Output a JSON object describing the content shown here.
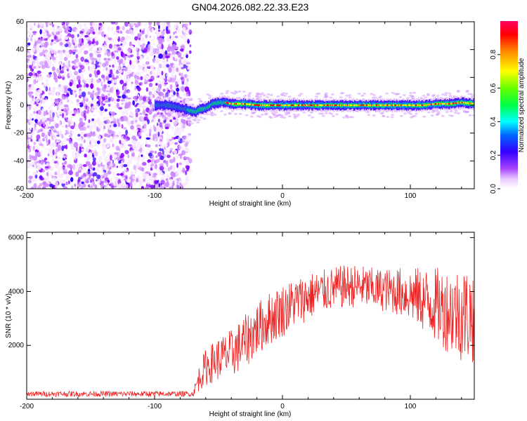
{
  "figure_title": "GN04.2026.082.22.33.E23",
  "colors": {
    "axis": "#000000",
    "snr_line": "#ee2222",
    "colormap": [
      "#f8e8ff",
      "#cc88ff",
      "#8800ff",
      "#3300ff",
      "#0000ff",
      "#0088ff",
      "#00ffff",
      "#00ff44",
      "#66ff00",
      "#ffff00",
      "#ff8800",
      "#ff0000",
      "#ff0066"
    ]
  },
  "chart_data": [
    {
      "type": "heatmap",
      "title": "GN04.2026.082.22.33.E23",
      "xlabel": "Height of straight line (km)",
      "ylabel": "Frequency (Hz)",
      "xlim": [
        -200,
        150
      ],
      "ylim": [
        -60,
        60
      ],
      "xticks": [
        -200,
        -100,
        0,
        100
      ],
      "yticks": [
        -60,
        -40,
        -20,
        0,
        20,
        40,
        60
      ],
      "noise_region_x": [
        -200,
        -72
      ],
      "signal_trace": {
        "x": [
          -100,
          -90,
          -85,
          -80,
          -75,
          -72,
          -68,
          -65,
          -60,
          -55,
          -50,
          -45,
          -40,
          -30,
          -20,
          0,
          20,
          50,
          80,
          100,
          110,
          120,
          130,
          140,
          150
        ],
        "freq": [
          0,
          0,
          -1,
          -2,
          -3,
          -4,
          -5,
          -3,
          -2,
          1,
          2,
          2,
          1,
          1,
          0,
          0,
          0,
          0,
          0,
          0,
          0,
          1,
          1,
          2,
          1
        ]
      },
      "colorbar": {
        "label": "Normalized spectral amplitude",
        "range": [
          0,
          1
        ],
        "ticks": [
          "0.0",
          "0.2",
          "0.4",
          "0.6",
          "0.8"
        ]
      }
    },
    {
      "type": "line",
      "xlabel": "Height of straight line (km)",
      "ylabel": "SNR (10 * v/v)",
      "xlim": [
        -200,
        150
      ],
      "ylim": [
        0,
        6200
      ],
      "xticks": [
        -200,
        -100,
        0,
        100
      ],
      "yticks": [
        2000,
        4000,
        6000
      ],
      "series": [
        {
          "name": "SNR",
          "envelope_x": [
            -200,
            -70,
            -65,
            -60,
            -50,
            -40,
            -30,
            -20,
            -10,
            0,
            10,
            20,
            30,
            40,
            50,
            60,
            70,
            80,
            90,
            100,
            110,
            120,
            130,
            140,
            150
          ],
          "envelope_mean": [
            200,
            200,
            800,
            1200,
            1500,
            1700,
            2100,
            2600,
            3000,
            3300,
            3600,
            3800,
            4000,
            4100,
            4200,
            4200,
            4100,
            4050,
            4000,
            3900,
            3700,
            3500,
            3300,
            3200,
            3100
          ],
          "envelope_amplitude": [
            100,
            100,
            500,
            700,
            800,
            900,
            1000,
            1000,
            1000,
            1000,
            900,
            900,
            800,
            800,
            800,
            800,
            800,
            800,
            900,
            1000,
            1200,
            1400,
            1600,
            1800,
            1800
          ]
        }
      ]
    }
  ]
}
